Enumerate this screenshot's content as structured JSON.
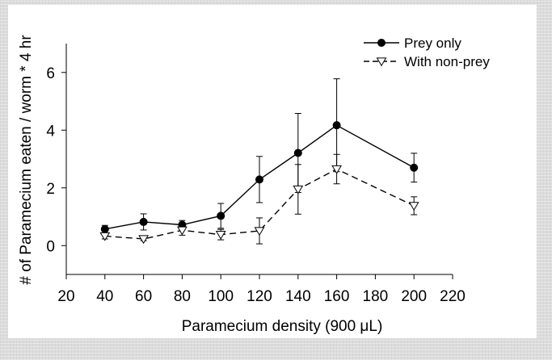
{
  "chart_data": {
    "type": "line",
    "title": "",
    "xlabel": "Paramecium density (900 μL)",
    "ylabel": "# of Paramecium eaten / worm * 4 hr",
    "xlim": [
      20,
      220
    ],
    "ylim": [
      -1,
      7
    ],
    "x_ticks": [
      "20",
      "40",
      "60",
      "80",
      "100",
      "120",
      "140",
      "160",
      "180",
      "200",
      "220"
    ],
    "y_ticks": [
      "0",
      "2",
      "4",
      "6"
    ],
    "x": [
      40,
      60,
      80,
      100,
      120,
      140,
      160,
      200
    ],
    "series": [
      {
        "name": "Prey only",
        "style": "solid",
        "marker": "filled-circle",
        "values": [
          0.57,
          0.82,
          0.72,
          1.03,
          2.29,
          3.21,
          4.17,
          2.7
        ],
        "err": [
          0.13,
          0.28,
          0.15,
          0.43,
          0.8,
          1.37,
          1.61,
          0.5
        ]
      },
      {
        "name": "With non-prey",
        "style": "dashed",
        "marker": "open-triangle-down",
        "values": [
          0.33,
          0.23,
          0.53,
          0.38,
          0.51,
          1.95,
          2.65,
          1.38
        ],
        "err": [
          0.1,
          0.06,
          0.17,
          0.18,
          0.45,
          0.86,
          0.51,
          0.31
        ]
      }
    ],
    "legend_position": "top-right"
  }
}
